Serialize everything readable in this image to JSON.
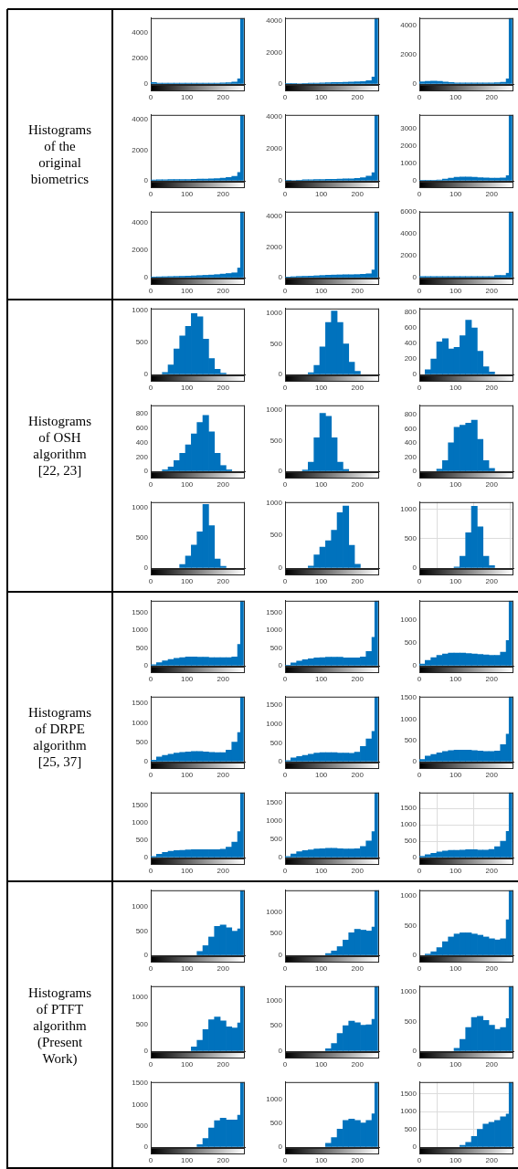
{
  "chart_data": [
    {
      "type": "other",
      "title": "Histograms of the original biometrics"
    },
    {
      "type": "histogram",
      "bins": [
        0,
        16,
        32,
        48,
        64,
        80,
        96,
        112,
        128,
        144,
        160,
        176,
        192,
        208,
        224,
        240,
        248,
        256
      ],
      "values": [
        120,
        60,
        60,
        60,
        60,
        60,
        60,
        60,
        60,
        60,
        70,
        70,
        80,
        100,
        150,
        400,
        5100
      ],
      "color": "#0072bd",
      "xlim": [
        0,
        260
      ],
      "xticks": [
        0,
        100,
        200
      ],
      "ylim": [
        0,
        5100
      ],
      "yticks": [
        0,
        2000,
        4000
      ]
    },
    {
      "type": "histogram",
      "bins": [
        0,
        16,
        32,
        48,
        64,
        80,
        96,
        112,
        128,
        144,
        160,
        176,
        192,
        208,
        224,
        240,
        248,
        256
      ],
      "values": [
        20,
        20,
        30,
        40,
        50,
        60,
        70,
        80,
        90,
        100,
        110,
        120,
        140,
        160,
        220,
        450,
        4200
      ],
      "color": "#0072bd",
      "xlim": [
        0,
        260
      ],
      "xticks": [
        0,
        100,
        200
      ],
      "ylim": [
        0,
        4200
      ],
      "yticks": [
        0,
        2000,
        4000
      ]
    },
    {
      "type": "histogram",
      "bins": [
        0,
        16,
        32,
        48,
        64,
        80,
        96,
        112,
        128,
        144,
        160,
        176,
        192,
        208,
        224,
        240,
        248,
        256
      ],
      "values": [
        150,
        180,
        200,
        180,
        140,
        100,
        80,
        80,
        70,
        70,
        70,
        70,
        80,
        90,
        120,
        350,
        4500
      ],
      "color": "#0072bd",
      "xlim": [
        0,
        260
      ],
      "xticks": [
        0,
        100,
        200
      ],
      "ylim": [
        0,
        4500
      ],
      "yticks": [
        0,
        2000,
        4000
      ]
    },
    {
      "type": "histogram",
      "bins": [
        0,
        16,
        32,
        48,
        64,
        80,
        96,
        112,
        128,
        144,
        160,
        176,
        192,
        208,
        224,
        240,
        248,
        256
      ],
      "values": [
        60,
        70,
        70,
        80,
        80,
        80,
        90,
        100,
        110,
        120,
        130,
        150,
        180,
        220,
        300,
        550,
        4300
      ],
      "color": "#0072bd",
      "xlim": [
        0,
        260
      ],
      "xticks": [
        0,
        100,
        200
      ],
      "ylim": [
        0,
        4300
      ],
      "yticks": [
        0,
        2000,
        4000
      ]
    },
    {
      "type": "histogram",
      "bins": [
        0,
        16,
        32,
        48,
        64,
        80,
        96,
        112,
        128,
        144,
        160,
        176,
        192,
        208,
        224,
        240,
        248,
        256
      ],
      "values": [
        20,
        30,
        40,
        60,
        70,
        80,
        80,
        90,
        100,
        110,
        120,
        130,
        150,
        200,
        300,
        500,
        4100
      ],
      "color": "#0072bd",
      "xlim": [
        0,
        260
      ],
      "xticks": [
        0,
        100,
        200
      ],
      "ylim": [
        0,
        4100
      ],
      "yticks": [
        0,
        2000,
        4000
      ]
    },
    {
      "type": "histogram",
      "bins": [
        0,
        16,
        32,
        48,
        64,
        80,
        96,
        112,
        128,
        144,
        160,
        176,
        192,
        208,
        224,
        240,
        248,
        256
      ],
      "values": [
        20,
        20,
        30,
        50,
        100,
        150,
        200,
        220,
        220,
        200,
        180,
        170,
        160,
        160,
        170,
        300,
        3800
      ],
      "color": "#0072bd",
      "xlim": [
        0,
        260
      ],
      "xticks": [
        0,
        100,
        200
      ],
      "ylim": [
        0,
        3800
      ],
      "yticks": [
        0,
        1000,
        2000,
        3000
      ]
    },
    {
      "type": "histogram",
      "bins": [
        0,
        16,
        32,
        48,
        64,
        80,
        96,
        112,
        128,
        144,
        160,
        176,
        192,
        208,
        224,
        240,
        248,
        256
      ],
      "values": [
        50,
        60,
        70,
        80,
        90,
        100,
        110,
        130,
        150,
        170,
        190,
        220,
        260,
        300,
        350,
        700,
        4800
      ],
      "color": "#0072bd",
      "xlim": [
        0,
        260
      ],
      "xticks": [
        0,
        100,
        200
      ],
      "ylim": [
        0,
        4800
      ],
      "yticks": [
        0,
        2000,
        4000
      ]
    },
    {
      "type": "histogram",
      "bins": [
        0,
        16,
        32,
        48,
        64,
        80,
        96,
        112,
        128,
        144,
        160,
        176,
        192,
        208,
        224,
        240,
        248,
        256
      ],
      "values": [
        40,
        60,
        80,
        90,
        100,
        120,
        140,
        160,
        170,
        180,
        190,
        190,
        200,
        220,
        250,
        500,
        4300
      ],
      "color": "#0072bd",
      "xlim": [
        0,
        260
      ],
      "xticks": [
        0,
        100,
        200
      ],
      "ylim": [
        0,
        4300
      ],
      "yticks": [
        0,
        2000,
        4000
      ]
    },
    {
      "type": "histogram",
      "bins": [
        0,
        16,
        32,
        48,
        64,
        80,
        96,
        112,
        128,
        144,
        160,
        176,
        192,
        208,
        224,
        240,
        248,
        256
      ],
      "values": [
        100,
        100,
        100,
        100,
        100,
        100,
        100,
        100,
        100,
        100,
        100,
        100,
        100,
        200,
        200,
        400,
        6000
      ],
      "color": "#0072bd",
      "xlim": [
        0,
        260
      ],
      "xticks": [
        0,
        100,
        200
      ],
      "ylim": [
        0,
        6000
      ],
      "yticks": [
        0,
        2000,
        4000,
        6000
      ]
    },
    {
      "type": "other",
      "title": "Histograms of OSH algorithm [22, 23]"
    },
    {
      "type": "histogram",
      "bins": [
        32,
        48,
        64,
        80,
        96,
        112,
        128,
        144,
        160,
        176,
        192,
        208
      ],
      "values": [
        30,
        150,
        400,
        600,
        750,
        950,
        900,
        550,
        250,
        80,
        20
      ],
      "color": "#0072bd",
      "xlim": [
        0,
        260
      ],
      "xticks": [
        0,
        100,
        200
      ],
      "ylim": [
        0,
        1030
      ],
      "yticks": [
        0,
        500,
        1000
      ]
    },
    {
      "type": "histogram",
      "bins": [
        64,
        80,
        96,
        112,
        128,
        144,
        160,
        176,
        192,
        208
      ],
      "values": [
        30,
        150,
        450,
        850,
        1040,
        850,
        500,
        200,
        50
      ],
      "color": "#0072bd",
      "xlim": [
        0,
        260
      ],
      "xticks": [
        0,
        100,
        200
      ],
      "ylim": [
        0,
        1080
      ],
      "yticks": [
        0,
        500,
        1000
      ]
    },
    {
      "type": "histogram",
      "bins": [
        16,
        32,
        48,
        64,
        80,
        96,
        112,
        128,
        144,
        160,
        176,
        192,
        208
      ],
      "values": [
        60,
        200,
        420,
        460,
        330,
        350,
        500,
        700,
        600,
        300,
        100,
        30
      ],
      "color": "#0072bd",
      "xlim": [
        0,
        260
      ],
      "xticks": [
        0,
        100,
        200
      ],
      "ylim": [
        0,
        850
      ],
      "yticks": [
        0,
        200,
        400,
        600,
        800
      ]
    },
    {
      "type": "histogram",
      "bins": [
        32,
        48,
        64,
        80,
        96,
        112,
        128,
        144,
        160,
        176,
        192,
        208,
        224
      ],
      "values": [
        20,
        60,
        150,
        250,
        370,
        520,
        680,
        780,
        550,
        250,
        80,
        20
      ],
      "color": "#0072bd",
      "xlim": [
        0,
        260
      ],
      "xticks": [
        0,
        100,
        200
      ],
      "ylim": [
        0,
        920
      ],
      "yticks": [
        0,
        200,
        400,
        600,
        800
      ]
    },
    {
      "type": "histogram",
      "bins": [
        48,
        64,
        80,
        96,
        112,
        128,
        144,
        160,
        176
      ],
      "values": [
        20,
        150,
        550,
        950,
        900,
        550,
        150,
        30
      ],
      "color": "#0072bd",
      "xlim": [
        0,
        260
      ],
      "xticks": [
        0,
        100,
        200
      ],
      "ylim": [
        0,
        1080
      ],
      "yticks": [
        0,
        500,
        1000
      ]
    },
    {
      "type": "histogram",
      "bins": [
        48,
        64,
        80,
        96,
        112,
        128,
        144,
        160,
        176,
        192,
        208
      ],
      "values": [
        30,
        150,
        400,
        620,
        650,
        680,
        720,
        450,
        150,
        40
      ],
      "color": "#0072bd",
      "xlim": [
        0,
        260
      ],
      "xticks": [
        0,
        100,
        200
      ],
      "ylim": [
        0,
        930
      ],
      "yticks": [
        0,
        200,
        400,
        600,
        800
      ]
    },
    {
      "type": "histogram",
      "bins": [
        80,
        96,
        112,
        128,
        144,
        160,
        176,
        192,
        208
      ],
      "values": [
        60,
        200,
        380,
        600,
        1050,
        700,
        150,
        30
      ],
      "color": "#0072bd",
      "xlim": [
        0,
        260
      ],
      "xticks": [
        0,
        100,
        200
      ],
      "ylim": [
        0,
        1090
      ],
      "yticks": [
        0,
        500,
        1000
      ]
    },
    {
      "type": "histogram",
      "bins": [
        64,
        80,
        96,
        112,
        128,
        144,
        160,
        176,
        192,
        208
      ],
      "values": [
        30,
        200,
        320,
        420,
        580,
        850,
        950,
        350,
        60
      ],
      "color": "#0072bd",
      "xlim": [
        0,
        260
      ],
      "xticks": [
        0,
        100,
        200
      ],
      "ylim": [
        0,
        1010
      ],
      "yticks": [
        0,
        500,
        1000
      ]
    },
    {
      "type": "histogram",
      "bins": [
        96,
        112,
        128,
        144,
        160,
        176,
        192,
        208
      ],
      "values": [
        20,
        200,
        600,
        1050,
        700,
        200,
        40
      ],
      "color": "#0072bd",
      "xlim": [
        0,
        260
      ],
      "xticks": [
        0,
        100,
        200
      ],
      "ylim": [
        0,
        1120
      ],
      "yticks": [
        0,
        500,
        1000
      ],
      "grid": true
    },
    {
      "type": "other",
      "title": "Histograms of DRPE algorithm [25, 37]"
    },
    {
      "type": "histogram",
      "bins": [
        0,
        16,
        32,
        48,
        64,
        80,
        96,
        112,
        128,
        144,
        160,
        176,
        192,
        208,
        224,
        240,
        248,
        256
      ],
      "values": [
        30,
        90,
        140,
        180,
        210,
        230,
        250,
        250,
        240,
        240,
        230,
        230,
        230,
        230,
        250,
        600,
        1820
      ],
      "color": "#0072bd",
      "xlim": [
        0,
        260
      ],
      "xticks": [
        0,
        100,
        200
      ],
      "ylim": [
        0,
        1820
      ],
      "yticks": [
        0,
        500,
        1000,
        1500
      ]
    },
    {
      "type": "histogram",
      "bins": [
        0,
        16,
        32,
        48,
        64,
        80,
        96,
        112,
        128,
        144,
        160,
        176,
        192,
        208,
        224,
        240,
        248,
        256
      ],
      "values": [
        20,
        80,
        130,
        170,
        200,
        220,
        230,
        240,
        240,
        240,
        220,
        220,
        220,
        250,
        400,
        800,
        1830
      ],
      "color": "#0072bd",
      "xlim": [
        0,
        260
      ],
      "xticks": [
        0,
        100,
        200
      ],
      "ylim": [
        0,
        1830
      ],
      "yticks": [
        0,
        500,
        1000,
        1500
      ]
    },
    {
      "type": "histogram",
      "bins": [
        0,
        16,
        32,
        48,
        64,
        80,
        96,
        112,
        128,
        144,
        160,
        176,
        192,
        208,
        224,
        240,
        248,
        256
      ],
      "values": [
        40,
        120,
        180,
        230,
        260,
        280,
        280,
        280,
        270,
        260,
        250,
        240,
        230,
        230,
        300,
        550,
        1420
      ],
      "color": "#0072bd",
      "xlim": [
        0,
        260
      ],
      "xticks": [
        0,
        100,
        200
      ],
      "ylim": [
        0,
        1420
      ],
      "yticks": [
        0,
        500,
        1000
      ]
    },
    {
      "type": "histogram",
      "bins": [
        0,
        16,
        32,
        48,
        64,
        80,
        96,
        112,
        128,
        144,
        160,
        176,
        192,
        208,
        224,
        240,
        248,
        256
      ],
      "values": [
        40,
        120,
        160,
        190,
        220,
        240,
        250,
        260,
        260,
        250,
        240,
        230,
        230,
        300,
        500,
        750,
        1670
      ],
      "color": "#0072bd",
      "xlim": [
        0,
        260
      ],
      "xticks": [
        0,
        100,
        200
      ],
      "ylim": [
        0,
        1670
      ],
      "yticks": [
        0,
        500,
        1000,
        1500
      ]
    },
    {
      "type": "histogram",
      "bins": [
        0,
        16,
        32,
        48,
        64,
        80,
        96,
        112,
        128,
        144,
        160,
        176,
        192,
        208,
        224,
        240,
        248,
        256
      ],
      "values": [
        30,
        100,
        140,
        170,
        200,
        230,
        240,
        240,
        240,
        230,
        230,
        220,
        250,
        400,
        600,
        800,
        1720
      ],
      "color": "#0072bd",
      "xlim": [
        0,
        260
      ],
      "xticks": [
        0,
        100,
        200
      ],
      "ylim": [
        0,
        1720
      ],
      "yticks": [
        0,
        500,
        1000,
        1500
      ]
    },
    {
      "type": "histogram",
      "bins": [
        0,
        16,
        32,
        48,
        64,
        80,
        96,
        112,
        128,
        144,
        160,
        176,
        192,
        208,
        224,
        240,
        248,
        256
      ],
      "values": [
        50,
        130,
        170,
        210,
        240,
        260,
        270,
        270,
        270,
        260,
        250,
        240,
        240,
        250,
        400,
        650,
        1530
      ],
      "color": "#0072bd",
      "xlim": [
        0,
        260
      ],
      "xticks": [
        0,
        100,
        200
      ],
      "ylim": [
        0,
        1530
      ],
      "yticks": [
        0,
        500,
        1000,
        1500
      ]
    },
    {
      "type": "histogram",
      "bins": [
        0,
        16,
        32,
        48,
        64,
        80,
        96,
        112,
        128,
        144,
        160,
        176,
        192,
        208,
        224,
        240,
        248,
        256
      ],
      "values": [
        30,
        100,
        150,
        180,
        200,
        210,
        220,
        230,
        230,
        230,
        230,
        230,
        240,
        300,
        450,
        750,
        1880
      ],
      "color": "#0072bd",
      "xlim": [
        0,
        260
      ],
      "xticks": [
        0,
        100,
        200
      ],
      "ylim": [
        0,
        1880
      ],
      "yticks": [
        0,
        500,
        1000,
        1500
      ]
    },
    {
      "type": "histogram",
      "bins": [
        0,
        16,
        32,
        48,
        64,
        80,
        96,
        112,
        128,
        144,
        160,
        176,
        192,
        208,
        224,
        240,
        248,
        256
      ],
      "values": [
        30,
        100,
        160,
        190,
        210,
        230,
        240,
        250,
        250,
        240,
        230,
        230,
        240,
        300,
        450,
        700,
        1760
      ],
      "color": "#0072bd",
      "xlim": [
        0,
        260
      ],
      "xticks": [
        0,
        100,
        200
      ],
      "ylim": [
        0,
        1760
      ],
      "yticks": [
        0,
        500,
        1000,
        1500
      ]
    },
    {
      "type": "histogram",
      "bins": [
        0,
        16,
        32,
        48,
        64,
        80,
        96,
        112,
        128,
        144,
        160,
        176,
        192,
        208,
        224,
        240,
        248,
        256
      ],
      "values": [
        40,
        90,
        130,
        170,
        200,
        220,
        220,
        230,
        240,
        240,
        230,
        230,
        250,
        330,
        500,
        800,
        1980
      ],
      "color": "#0072bd",
      "xlim": [
        0,
        260
      ],
      "xticks": [
        0,
        100,
        200
      ],
      "ylim": [
        0,
        1980
      ],
      "yticks": [
        0,
        500,
        1000,
        1500
      ],
      "grid": true
    },
    {
      "type": "other",
      "title": "Histograms of PTFT algorithm (Present Work)"
    },
    {
      "type": "histogram",
      "bins": [
        128,
        144,
        160,
        176,
        192,
        208,
        224,
        240,
        248,
        256
      ],
      "values": [
        80,
        200,
        380,
        600,
        630,
        570,
        500,
        550,
        1350
      ],
      "color": "#0072bd",
      "xlim": [
        0,
        260
      ],
      "xticks": [
        0,
        100,
        200
      ],
      "ylim": [
        0,
        1350
      ],
      "yticks": [
        0,
        500,
        1000
      ]
    },
    {
      "type": "histogram",
      "bins": [
        112,
        128,
        144,
        160,
        176,
        192,
        208,
        224,
        240,
        248,
        256
      ],
      "values": [
        40,
        100,
        200,
        350,
        520,
        600,
        580,
        560,
        650,
        1500
      ],
      "color": "#0072bd",
      "xlim": [
        0,
        260
      ],
      "xticks": [
        0,
        100,
        200
      ],
      "ylim": [
        0,
        1500
      ],
      "yticks": [
        0,
        500,
        1000
      ]
    },
    {
      "type": "histogram",
      "bins": [
        16,
        32,
        48,
        64,
        80,
        96,
        112,
        128,
        144,
        160,
        176,
        192,
        208,
        224,
        240,
        248,
        256
      ],
      "values": [
        20,
        60,
        130,
        230,
        310,
        360,
        380,
        380,
        360,
        340,
        310,
        280,
        260,
        280,
        600,
        1100
      ],
      "color": "#0072bd",
      "xlim": [
        0,
        260
      ],
      "xticks": [
        0,
        100,
        200
      ],
      "ylim": [
        0,
        1100
      ],
      "yticks": [
        0,
        500,
        1000
      ]
    },
    {
      "type": "histogram",
      "bins": [
        112,
        128,
        144,
        160,
        176,
        192,
        208,
        224,
        240,
        248,
        256
      ],
      "values": [
        80,
        200,
        400,
        580,
        630,
        560,
        450,
        430,
        520,
        1200
      ],
      "color": "#0072bd",
      "xlim": [
        0,
        260
      ],
      "xticks": [
        0,
        100,
        200
      ],
      "ylim": [
        0,
        1200
      ],
      "yticks": [
        0,
        500,
        1000
      ]
    },
    {
      "type": "histogram",
      "bins": [
        112,
        128,
        144,
        160,
        176,
        192,
        208,
        224,
        240,
        248,
        256
      ],
      "values": [
        50,
        150,
        350,
        500,
        590,
        560,
        510,
        520,
        630,
        1280
      ],
      "color": "#0072bd",
      "xlim": [
        0,
        260
      ],
      "xticks": [
        0,
        100,
        200
      ],
      "ylim": [
        0,
        1280
      ],
      "yticks": [
        0,
        500,
        1000
      ]
    },
    {
      "type": "histogram",
      "bins": [
        96,
        112,
        128,
        144,
        160,
        176,
        192,
        208,
        224,
        240,
        248,
        256
      ],
      "values": [
        50,
        200,
        400,
        570,
        590,
        520,
        440,
        370,
        400,
        550,
        1100
      ],
      "color": "#0072bd",
      "xlim": [
        0,
        260
      ],
      "xticks": [
        0,
        100,
        200
      ],
      "ylim": [
        0,
        1100
      ],
      "yticks": [
        0,
        500,
        1000
      ]
    },
    {
      "type": "histogram",
      "bins": [
        128,
        144,
        160,
        176,
        192,
        208,
        224,
        240,
        248,
        256
      ],
      "values": [
        60,
        200,
        450,
        620,
        680,
        640,
        640,
        750,
        1530
      ],
      "color": "#0072bd",
      "xlim": [
        0,
        260
      ],
      "xticks": [
        0,
        100,
        200
      ],
      "ylim": [
        0,
        1530
      ],
      "yticks": [
        0,
        500,
        1000,
        1500
      ]
    },
    {
      "type": "histogram",
      "bins": [
        112,
        128,
        144,
        160,
        176,
        192,
        208,
        224,
        240,
        248,
        256
      ],
      "values": [
        80,
        200,
        380,
        560,
        590,
        560,
        510,
        560,
        700,
        1370
      ],
      "color": "#0072bd",
      "xlim": [
        0,
        260
      ],
      "xticks": [
        0,
        100,
        200
      ],
      "ylim": [
        0,
        1370
      ],
      "yticks": [
        0,
        500,
        1000
      ]
    },
    {
      "type": "histogram",
      "bins": [
        112,
        128,
        144,
        160,
        176,
        192,
        208,
        224,
        240,
        248,
        256
      ],
      "values": [
        50,
        130,
        300,
        500,
        650,
        700,
        750,
        850,
        930,
        1830
      ],
      "color": "#0072bd",
      "xlim": [
        0,
        260
      ],
      "xticks": [
        0,
        100,
        200
      ],
      "ylim": [
        0,
        1830
      ],
      "yticks": [
        0,
        500,
        1000,
        1500
      ],
      "grid": true
    }
  ]
}
